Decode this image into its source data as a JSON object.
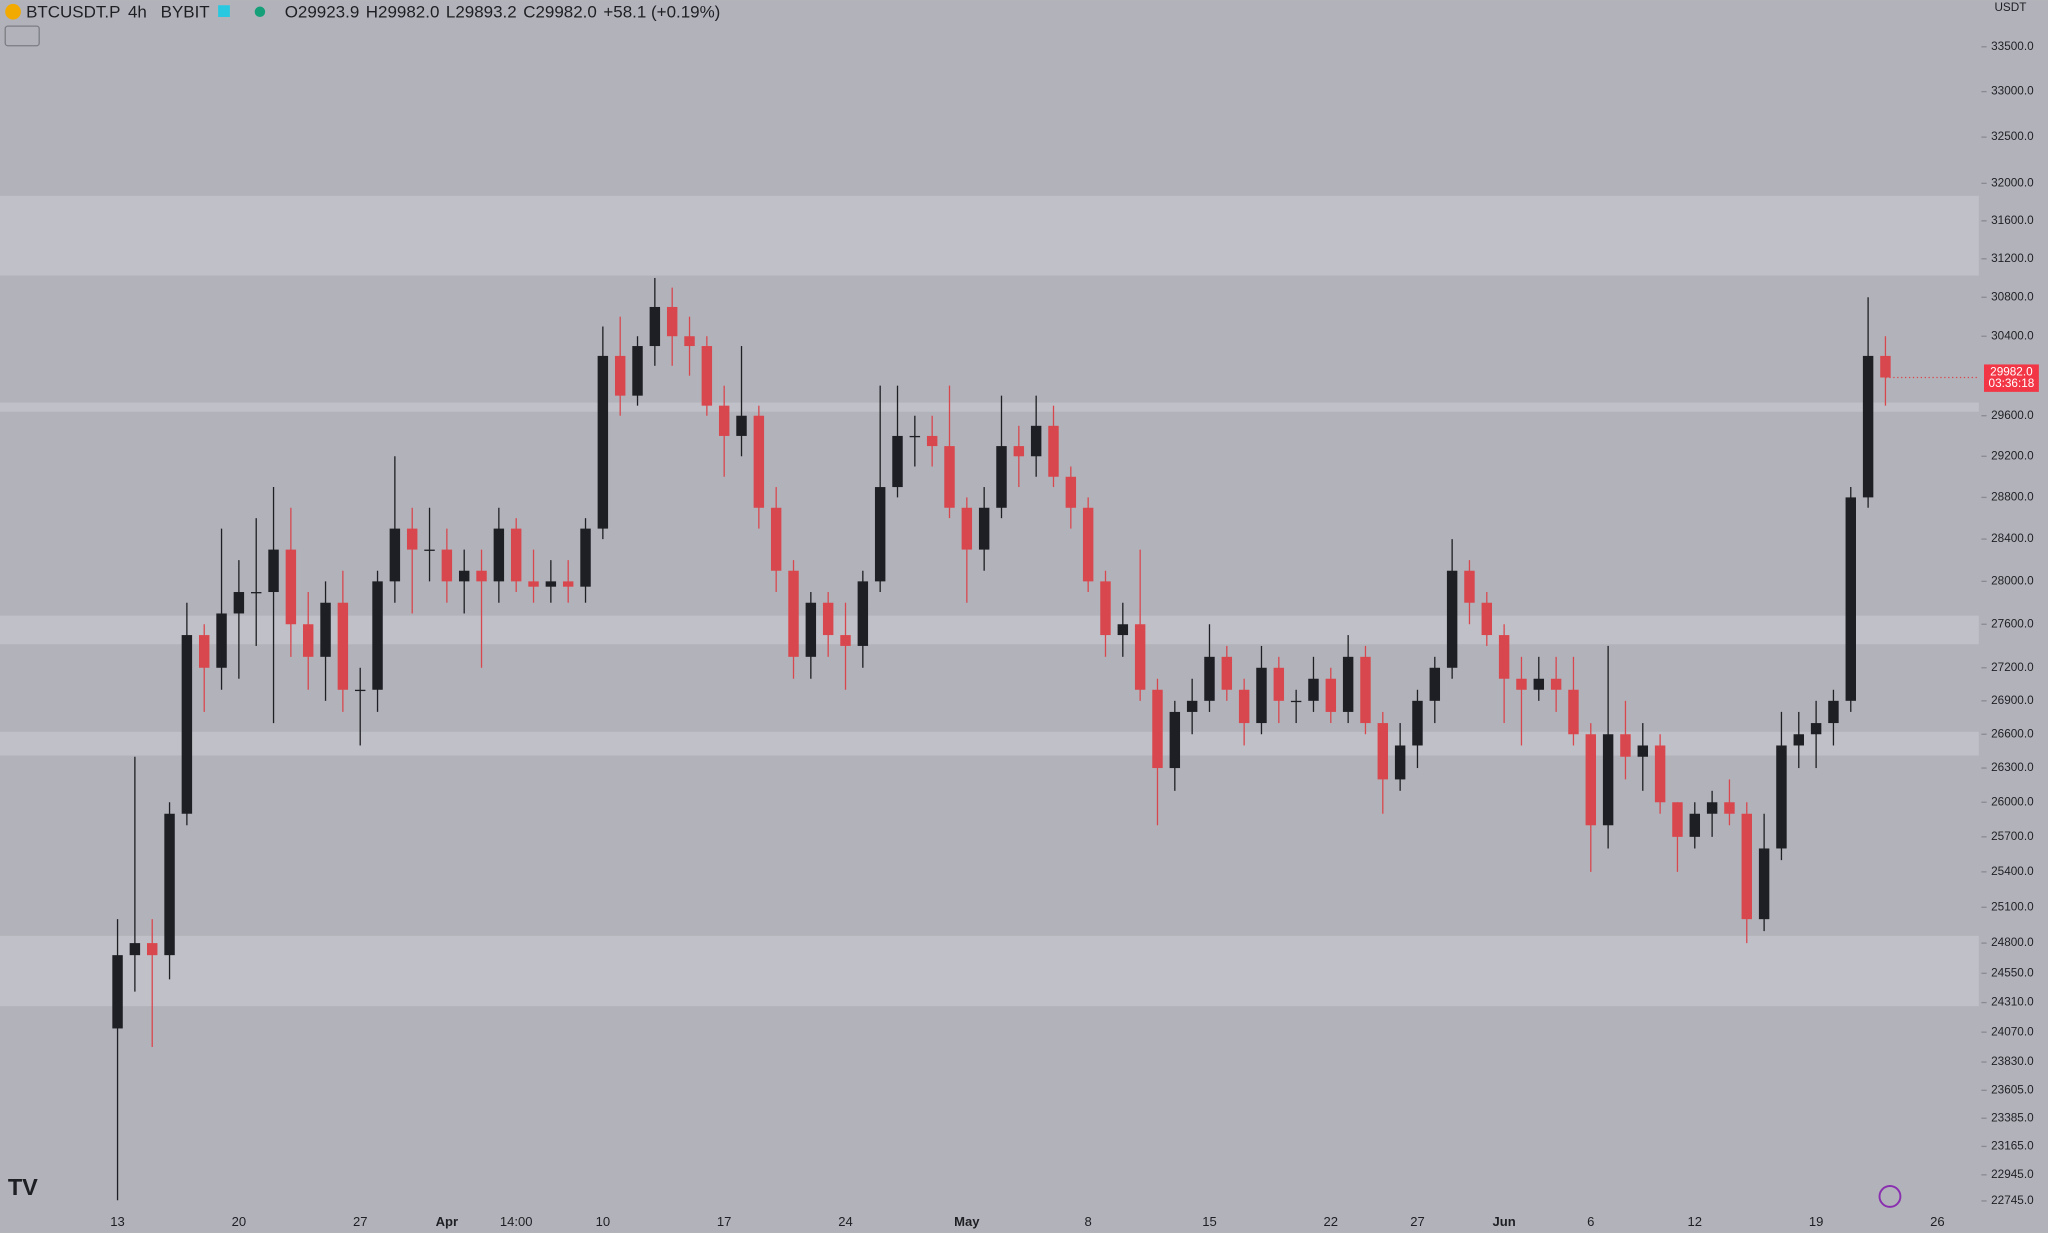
{
  "chart_data": {
    "type": "candlestick",
    "symbol": "BTCUSDT.P",
    "interval": "4h",
    "exchange": "BYBIT",
    "ohlc_text": [
      "O29923.9",
      "H29982.0",
      "L29893.2",
      "C29982.0",
      "+58.1 (+0.19%)"
    ],
    "currency": "USDT",
    "price_label": "29982.0",
    "countdown": "03:36:18",
    "log_scale": true,
    "up_color": "#1e1f24",
    "down_color": "#d9474e",
    "zone_color": "#c0c1c8",
    "background": "#b2b3ba",
    "ylim": [
      22660,
      34030
    ],
    "yticks": [
      {
        "value": 33500,
        "label": "33500.0"
      },
      {
        "value": 33000,
        "label": "33000.0"
      },
      {
        "value": 32500,
        "label": "32500.0"
      },
      {
        "value": 32000,
        "label": "32000.0"
      },
      {
        "value": 31600,
        "label": "31600.0"
      },
      {
        "value": 31200,
        "label": "31200.0"
      },
      {
        "value": 30800,
        "label": "30800.0"
      },
      {
        "value": 30400,
        "label": "30400.0"
      },
      {
        "value": 29600,
        "label": "29600.0"
      },
      {
        "value": 29200,
        "label": "29200.0"
      },
      {
        "value": 28800,
        "label": "28800.0"
      },
      {
        "value": 28400,
        "label": "28400.0"
      },
      {
        "value": 28000,
        "label": "28000.0"
      },
      {
        "value": 27600,
        "label": "27600.0"
      },
      {
        "value": 27200,
        "label": "27200.0"
      },
      {
        "value": 26900,
        "label": "26900.0"
      },
      {
        "value": 26600,
        "label": "26600.0"
      },
      {
        "value": 26300,
        "label": "26300.0"
      },
      {
        "value": 26000,
        "label": "26000.0"
      },
      {
        "value": 25700,
        "label": "25700.0"
      },
      {
        "value": 25400,
        "label": "25400.0"
      },
      {
        "value": 25100,
        "label": "25100.0"
      },
      {
        "value": 24800,
        "label": "24800.0"
      },
      {
        "value": 24550,
        "label": "24550.0"
      },
      {
        "value": 24310,
        "label": "24310.0"
      },
      {
        "value": 24070,
        "label": "24070.0"
      },
      {
        "value": 23830,
        "label": "23830.0"
      },
      {
        "value": 23605,
        "label": "23605.0"
      },
      {
        "value": 23385,
        "label": "23385.0"
      },
      {
        "value": 23165,
        "label": "23165.0"
      },
      {
        "value": 22945,
        "label": "22945.0"
      },
      {
        "value": 22745,
        "label": "22745.0"
      }
    ],
    "zones": [
      [
        31025,
        31866
      ],
      [
        27416,
        27680
      ],
      [
        26411,
        26622
      ],
      [
        24281,
        24860
      ],
      [
        29640,
        29731
      ]
    ],
    "categories": [
      "13",
      null,
      null,
      null,
      null,
      null,
      null,
      "20",
      null,
      null,
      null,
      null,
      null,
      null,
      "27",
      null,
      null,
      null,
      null,
      "Apr",
      null,
      null,
      null,
      "14:00",
      null,
      null,
      null,
      null,
      "10",
      null,
      null,
      null,
      null,
      null,
      null,
      "17",
      null,
      null,
      null,
      null,
      null,
      null,
      "24",
      null,
      null,
      null,
      null,
      null,
      null,
      "May",
      null,
      null,
      null,
      null,
      null,
      null,
      "8",
      null,
      null,
      null,
      null,
      null,
      null,
      "15",
      null,
      null,
      null,
      null,
      null,
      null,
      "22",
      null,
      null,
      null,
      null,
      "27",
      null,
      null,
      null,
      null,
      "Jun",
      null,
      null,
      null,
      null,
      "6",
      null,
      null,
      null,
      null,
      null,
      "12",
      null,
      null,
      null,
      null,
      null,
      null,
      "19",
      null,
      null,
      null,
      null,
      null,
      null,
      "26"
    ],
    "open": [
      24100,
      24700,
      24800,
      24700,
      25900,
      27500,
      27200,
      27700,
      27900,
      27900,
      28300,
      27600,
      27300,
      27800,
      27000,
      27000,
      28000,
      28500,
      28300,
      28300,
      28000,
      28100,
      28000,
      28500,
      28000,
      27950,
      28000,
      27950,
      28500,
      30200,
      29800,
      30300,
      30700,
      30400,
      30300,
      29700,
      29400,
      29600,
      28700,
      28100,
      27300,
      27800,
      27500,
      27400,
      28000,
      28900,
      29400,
      29400,
      29300,
      28700,
      28300,
      28700,
      29300,
      29200,
      29500,
      29000,
      28700,
      28000,
      27500,
      27600,
      27000,
      26300,
      26800,
      26900,
      27300,
      27000,
      26700,
      27200,
      26900,
      26900,
      27100,
      26800,
      27300,
      26700,
      26200,
      26500,
      26900,
      27200,
      28100,
      27800,
      27500,
      27100,
      27000,
      27100,
      27000,
      26600,
      25800,
      26600,
      26400,
      26500,
      26000,
      25700,
      25900,
      26000,
      25900,
      25000,
      25600,
      26500,
      26600,
      26700,
      26900,
      28800,
      30200,
      null,
      null,
      null
    ],
    "high": [
      25000,
      26400,
      25000,
      26000,
      27800,
      27600,
      28500,
      28200,
      28600,
      28900,
      28700,
      27900,
      28000,
      28100,
      27200,
      28100,
      29200,
      28700,
      28700,
      28500,
      28300,
      28300,
      28700,
      28600,
      28300,
      28200,
      28200,
      28600,
      30500,
      30600,
      30400,
      31000,
      30900,
      30600,
      30400,
      29900,
      30300,
      29700,
      28900,
      28200,
      27900,
      27900,
      27800,
      28100,
      29900,
      29900,
      29600,
      29600,
      29900,
      28800,
      28900,
      29800,
      29500,
      29800,
      29700,
      29100,
      28800,
      28100,
      27800,
      28300,
      27100,
      26900,
      27100,
      27600,
      27400,
      27100,
      27400,
      27300,
      27000,
      27300,
      27200,
      27500,
      27400,
      26800,
      26700,
      27000,
      27300,
      28400,
      28200,
      27900,
      27600,
      27300,
      27300,
      27300,
      27300,
      26700,
      27400,
      26900,
      26700,
      26600,
      26000,
      26000,
      26100,
      26200,
      26000,
      25900,
      26800,
      26800,
      26900,
      27000,
      28900,
      30800,
      30400,
      null,
      null,
      null
    ],
    "low": [
      22750,
      24400,
      23950,
      24500,
      25800,
      26800,
      27000,
      27100,
      27400,
      26700,
      27300,
      27000,
      26900,
      26800,
      26500,
      26800,
      27800,
      27700,
      28000,
      27800,
      27700,
      27200,
      27800,
      27900,
      27800,
      27800,
      27800,
      27800,
      28400,
      29600,
      29700,
      30100,
      30100,
      30000,
      29600,
      29000,
      29200,
      28500,
      27900,
      27100,
      27100,
      27300,
      27000,
      27200,
      27900,
      28800,
      29100,
      29100,
      28600,
      27800,
      28100,
      28600,
      28900,
      29000,
      28900,
      28500,
      27900,
      27300,
      27300,
      26900,
      25800,
      26100,
      26600,
      26800,
      26900,
      26500,
      26600,
      26700,
      26700,
      26800,
      26700,
      26700,
      26600,
      25900,
      26100,
      26300,
      26700,
      27100,
      27600,
      27400,
      26700,
      26500,
      26900,
      26800,
      26500,
      25400,
      25600,
      26200,
      26100,
      25900,
      25400,
      25600,
      25700,
      25800,
      24800,
      24900,
      25500,
      26300,
      26300,
      26500,
      26800,
      28700,
      29700,
      null,
      null,
      null
    ],
    "close": [
      24700,
      24800,
      24700,
      25900,
      27500,
      27200,
      27700,
      27900,
      27900,
      28300,
      27600,
      27300,
      27800,
      27000,
      27000,
      28000,
      28500,
      28300,
      28300,
      28000,
      28100,
      28000,
      28500,
      28000,
      27950,
      28000,
      27950,
      28500,
      30200,
      29800,
      30300,
      30700,
      30400,
      30300,
      29700,
      29400,
      29600,
      28700,
      28100,
      27300,
      27800,
      27500,
      27400,
      28000,
      28900,
      29400,
      29400,
      29300,
      28700,
      28300,
      28700,
      29300,
      29200,
      29500,
      29000,
      28700,
      28000,
      27500,
      27600,
      27000,
      26300,
      26800,
      26900,
      27300,
      27000,
      26700,
      27200,
      26900,
      26900,
      27100,
      26800,
      27300,
      26700,
      26200,
      26500,
      26900,
      27200,
      28100,
      27800,
      27500,
      27100,
      27000,
      27100,
      27000,
      26600,
      25800,
      26600,
      26400,
      26500,
      26000,
      25700,
      25900,
      26000,
      25900,
      25000,
      25600,
      26500,
      26600,
      26700,
      26900,
      28800,
      30200,
      29982,
      null,
      null,
      null
    ]
  }
}
